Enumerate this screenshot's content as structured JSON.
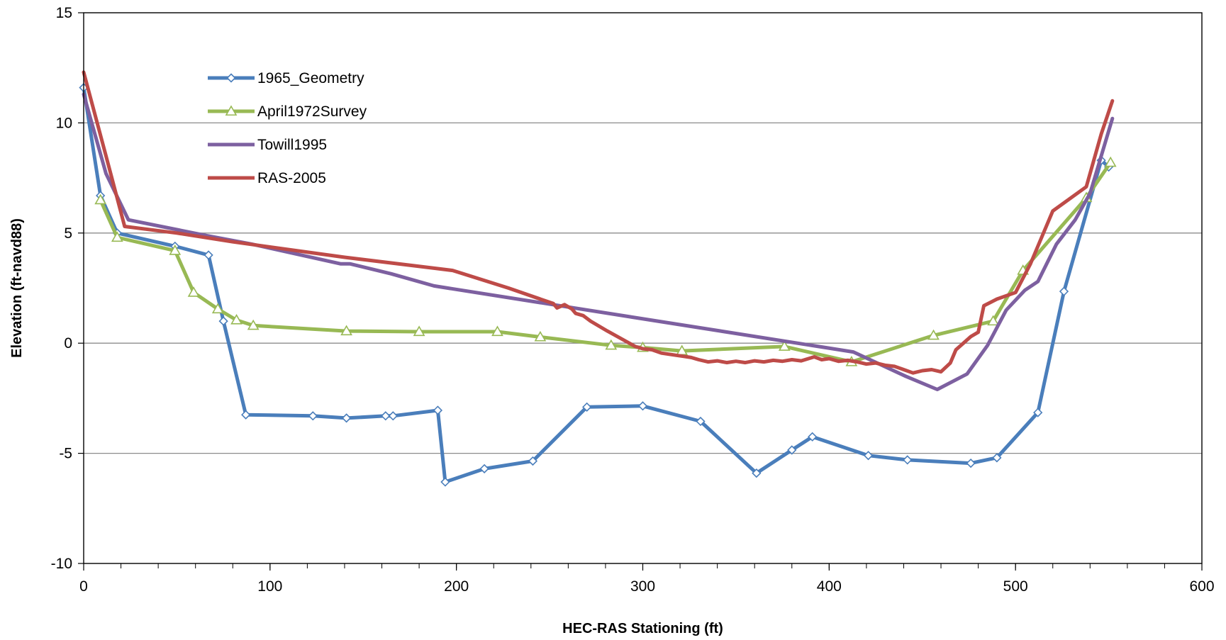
{
  "chart_data": {
    "type": "line",
    "title": "",
    "xlabel": "HEC-RAS Stationing (ft)",
    "ylabel": "Elevation (ft-navd88)",
    "xlim": [
      0,
      600
    ],
    "ylim": [
      -10,
      15
    ],
    "x_ticks": [
      0,
      100,
      200,
      300,
      400,
      500,
      600
    ],
    "y_ticks": [
      -10,
      -5,
      0,
      5,
      10,
      15
    ],
    "x_tick_labels": [
      "0",
      "100",
      "200",
      "300",
      "400",
      "500",
      "600"
    ],
    "y_tick_labels": [
      "-10",
      "-5",
      "0",
      "5",
      "10",
      "15"
    ],
    "grid": "horizontal",
    "legend_position": "top-left",
    "series": [
      {
        "name": "1965_Geometry",
        "color": "#4a7ebb",
        "marker": "diamond",
        "points": [
          [
            0,
            11.6
          ],
          [
            9,
            6.7
          ],
          [
            18,
            5.0
          ],
          [
            49,
            4.4
          ],
          [
            67,
            4.0
          ],
          [
            75,
            1.0
          ],
          [
            87,
            -3.25
          ],
          [
            123,
            -3.3
          ],
          [
            141,
            -3.4
          ],
          [
            162,
            -3.3
          ],
          [
            166,
            -3.3
          ],
          [
            190,
            -3.05
          ],
          [
            194,
            -6.3
          ],
          [
            215,
            -5.7
          ],
          [
            241,
            -5.35
          ],
          [
            270,
            -2.9
          ],
          [
            300,
            -2.85
          ],
          [
            331,
            -3.55
          ],
          [
            361,
            -5.9
          ],
          [
            380,
            -4.85
          ],
          [
            391,
            -4.25
          ],
          [
            421,
            -5.1
          ],
          [
            442,
            -5.3
          ],
          [
            476,
            -5.45
          ],
          [
            490,
            -5.2
          ],
          [
            512,
            -3.15
          ],
          [
            526,
            2.35
          ],
          [
            546,
            8.3
          ],
          [
            550,
            8.0
          ]
        ]
      },
      {
        "name": "April1972Survey",
        "color": "#98b954",
        "marker": "triangle",
        "points": [
          [
            9,
            6.5
          ],
          [
            18,
            4.8
          ],
          [
            49,
            4.2
          ],
          [
            59,
            2.3
          ],
          [
            72,
            1.55
          ],
          [
            82,
            1.05
          ],
          [
            91,
            0.8
          ],
          [
            141,
            0.55
          ],
          [
            180,
            0.52
          ],
          [
            222,
            0.52
          ],
          [
            245,
            0.28
          ],
          [
            283,
            -0.1
          ],
          [
            300,
            -0.2
          ],
          [
            321,
            -0.35
          ],
          [
            376,
            -0.15
          ],
          [
            412,
            -0.85
          ],
          [
            456,
            0.35
          ],
          [
            488,
            1.0
          ],
          [
            504,
            3.3
          ],
          [
            538,
            6.6
          ],
          [
            551,
            8.2
          ]
        ]
      },
      {
        "name": "Towill1995",
        "color": "#7d60a0",
        "points": [
          [
            0,
            11.3
          ],
          [
            12,
            7.7
          ],
          [
            24,
            5.6
          ],
          [
            65,
            4.9
          ],
          [
            90,
            4.5
          ],
          [
            138,
            3.6
          ],
          [
            143,
            3.6
          ],
          [
            165,
            3.15
          ],
          [
            188,
            2.6
          ],
          [
            413,
            -0.4
          ],
          [
            441,
            -1.5
          ],
          [
            458,
            -2.1
          ],
          [
            474,
            -1.4
          ],
          [
            485,
            -0.1
          ],
          [
            495,
            1.5
          ],
          [
            505,
            2.4
          ],
          [
            512,
            2.8
          ],
          [
            522,
            4.5
          ],
          [
            532,
            5.6
          ],
          [
            540,
            6.8
          ],
          [
            552,
            10.2
          ]
        ]
      },
      {
        "name": "RAS-2005",
        "color": "#be4b48",
        "points": [
          [
            0,
            12.3
          ],
          [
            12,
            8.5
          ],
          [
            22,
            5.3
          ],
          [
            50,
            5.0
          ],
          [
            80,
            4.6
          ],
          [
            140,
            3.9
          ],
          [
            198,
            3.3
          ],
          [
            228,
            2.5
          ],
          [
            252,
            1.8
          ],
          [
            254,
            1.6
          ],
          [
            258,
            1.75
          ],
          [
            262,
            1.55
          ],
          [
            264,
            1.35
          ],
          [
            268,
            1.25
          ],
          [
            272,
            1.0
          ],
          [
            281,
            0.55
          ],
          [
            296,
            -0.15
          ],
          [
            300,
            -0.25
          ],
          [
            305,
            -0.3
          ],
          [
            310,
            -0.45
          ],
          [
            318,
            -0.55
          ],
          [
            322,
            -0.6
          ],
          [
            326,
            -0.65
          ],
          [
            330,
            -0.75
          ],
          [
            335,
            -0.85
          ],
          [
            340,
            -0.8
          ],
          [
            345,
            -0.88
          ],
          [
            350,
            -0.82
          ],
          [
            355,
            -0.88
          ],
          [
            360,
            -0.8
          ],
          [
            365,
            -0.85
          ],
          [
            370,
            -0.78
          ],
          [
            375,
            -0.82
          ],
          [
            380,
            -0.75
          ],
          [
            385,
            -0.8
          ],
          [
            392,
            -0.62
          ],
          [
            396,
            -0.75
          ],
          [
            400,
            -0.7
          ],
          [
            405,
            -0.82
          ],
          [
            410,
            -0.78
          ],
          [
            415,
            -0.85
          ],
          [
            420,
            -0.95
          ],
          [
            425,
            -0.9
          ],
          [
            430,
            -1.0
          ],
          [
            435,
            -1.05
          ],
          [
            440,
            -1.2
          ],
          [
            445,
            -1.35
          ],
          [
            450,
            -1.25
          ],
          [
            455,
            -1.2
          ],
          [
            460,
            -1.3
          ],
          [
            465,
            -0.9
          ],
          [
            468,
            -0.3
          ],
          [
            472,
            0.0
          ],
          [
            476,
            0.3
          ],
          [
            480,
            0.5
          ],
          [
            483,
            1.7
          ],
          [
            490,
            2.0
          ],
          [
            500,
            2.3
          ],
          [
            508,
            3.6
          ],
          [
            520,
            6.0
          ],
          [
            538,
            7.1
          ],
          [
            546,
            9.5
          ],
          [
            552,
            11.0
          ]
        ]
      }
    ]
  }
}
